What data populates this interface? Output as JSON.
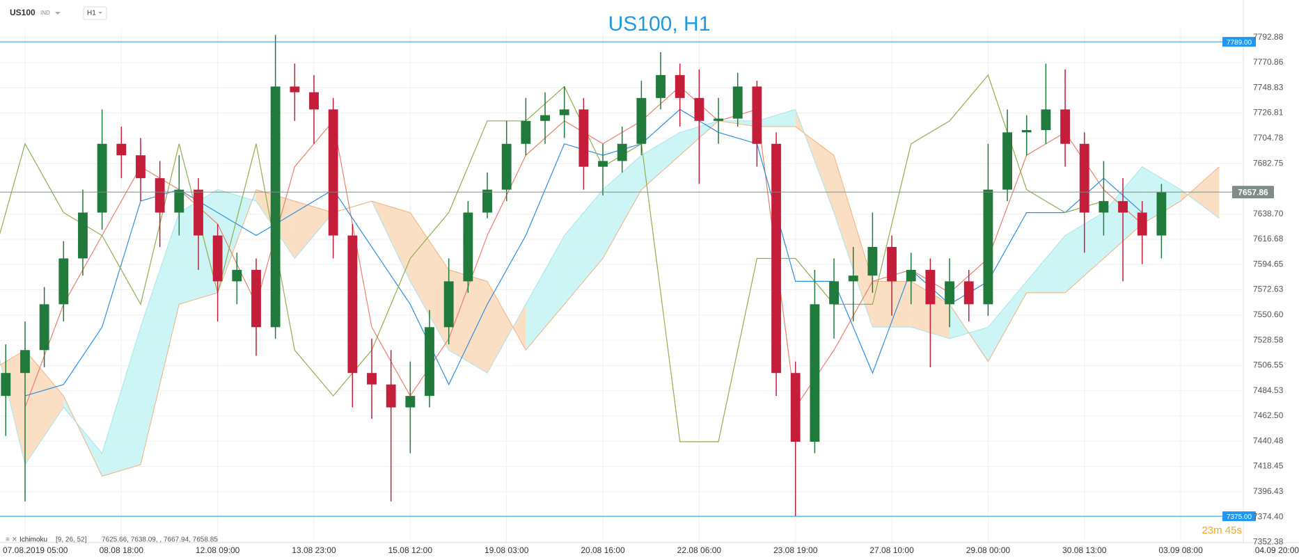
{
  "header": {
    "symbol": "US100",
    "category": "IND",
    "timeframe": "H1"
  },
  "chart_data": {
    "type": "candlestick",
    "title": "US100, H1",
    "x": [
      -2,
      0,
      2,
      4,
      6,
      8,
      10,
      12,
      14,
      16,
      18,
      20,
      22,
      24,
      26,
      28,
      30,
      32,
      34,
      36,
      38,
      40,
      42,
      44,
      46,
      48,
      50,
      52,
      54,
      56,
      58,
      60,
      62,
      64,
      66,
      68,
      70,
      72,
      74,
      76,
      78,
      80,
      82,
      84,
      86,
      88,
      90,
      92,
      94,
      96,
      98,
      100,
      102,
      104,
      106,
      108,
      110,
      112,
      114,
      116,
      118
    ],
    "open": [
      7480,
      7500,
      7520,
      7560,
      7600,
      7640,
      7700,
      7690,
      7670,
      7640,
      7660,
      7620,
      7580,
      7590,
      7540,
      7750,
      7745,
      7730,
      7620,
      7500,
      7490,
      7470,
      7480,
      7540,
      7580,
      7640,
      7660,
      7700,
      7720,
      7725,
      7730,
      7680,
      7685,
      7700,
      7740,
      7760,
      7740,
      7720,
      7722,
      7750,
      7700,
      7500,
      7440,
      7560,
      7580,
      7585,
      7610,
      7580,
      7590,
      7560,
      7580,
      7560,
      7660,
      7710,
      7712,
      7730,
      7700,
      7640,
      7650,
      7640,
      7620
    ],
    "high": [
      7525,
      7545,
      7575,
      7615,
      7660,
      7730,
      7715,
      7705,
      7685,
      7690,
      7670,
      7630,
      7605,
      7600,
      7795,
      7770,
      7760,
      7740,
      7630,
      7530,
      7520,
      7510,
      7555,
      7600,
      7650,
      7675,
      7720,
      7740,
      7745,
      7750,
      7740,
      7700,
      7715,
      7755,
      7780,
      7770,
      7765,
      7740,
      7762,
      7755,
      7710,
      7510,
      7590,
      7600,
      7610,
      7640,
      7620,
      7605,
      7600,
      7600,
      7590,
      7700,
      7730,
      7725,
      7770,
      7765,
      7710,
      7685,
      7670,
      7650,
      7665
    ],
    "low": [
      7445,
      7388,
      7505,
      7545,
      7585,
      7625,
      7670,
      7650,
      7610,
      7620,
      7590,
      7545,
      7560,
      7515,
      7530,
      7720,
      7700,
      7600,
      7470,
      7460,
      7388,
      7430,
      7470,
      7525,
      7570,
      7635,
      7650,
      7690,
      7700,
      7705,
      7660,
      7655,
      7675,
      7690,
      7730,
      7715,
      7665,
      7700,
      7715,
      7680,
      7480,
      7375,
      7430,
      7530,
      7545,
      7570,
      7550,
      7560,
      7505,
      7540,
      7545,
      7550,
      7650,
      7690,
      7700,
      7680,
      7605,
      7620,
      7580,
      7595,
      7600
    ],
    "close": [
      7500,
      7520,
      7560,
      7600,
      7640,
      7700,
      7690,
      7670,
      7640,
      7660,
      7620,
      7580,
      7590,
      7540,
      7750,
      7745,
      7730,
      7620,
      7500,
      7490,
      7470,
      7480,
      7540,
      7580,
      7640,
      7660,
      7700,
      7720,
      7725,
      7730,
      7680,
      7685,
      7700,
      7740,
      7760,
      7740,
      7720,
      7722,
      7750,
      7700,
      7500,
      7440,
      7560,
      7580,
      7585,
      7610,
      7580,
      7590,
      7560,
      7580,
      7560,
      7660,
      7710,
      7712,
      7730,
      7700,
      7640,
      7650,
      7640,
      7620,
      7658
    ],
    "up_color": "#1f7a3c",
    "down_color": "#c41e3a",
    "line_x": [
      -4,
      0,
      4,
      8,
      12,
      16,
      20,
      24,
      28,
      32,
      36,
      40,
      44,
      48,
      52,
      56,
      60,
      64,
      68,
      72,
      76,
      80,
      84,
      88,
      92,
      96,
      100,
      104,
      108,
      112,
      116,
      120,
      124
    ],
    "lines": [
      {
        "color": "#ec7f6a",
        "values": [
          null,
          7470,
          7560,
          7620,
          7680,
          7660,
          7630,
          7560,
          7680,
          7720,
          7540,
          7480,
          7530,
          7620,
          7690,
          7720,
          7700,
          7720,
          7750,
          7720,
          7730,
          7470,
          7520,
          7580,
          7590,
          7570,
          7600,
          7690,
          7710,
          7660,
          7630,
          null,
          null
        ]
      },
      {
        "color": "#2b8fe3",
        "values": [
          null,
          7480,
          7490,
          7540,
          7650,
          7660,
          7640,
          7620,
          7640,
          7660,
          7610,
          7560,
          7490,
          7560,
          7620,
          7700,
          7690,
          7700,
          7730,
          7710,
          7700,
          7580,
          7580,
          7500,
          7590,
          7560,
          7580,
          7640,
          7640,
          7670,
          7640,
          null,
          null
        ]
      },
      {
        "color": "#8fae4e",
        "values": [
          7580,
          7700,
          7640,
          7620,
          7560,
          7700,
          7570,
          7700,
          7520,
          7480,
          7520,
          7600,
          7640,
          7720,
          7720,
          7750,
          7680,
          7700,
          7440,
          7440,
          7600,
          7600,
          7560,
          7560,
          7700,
          7720,
          7760,
          7660,
          7640,
          7650,
          null,
          null,
          null
        ]
      }
    ],
    "cloud": {
      "span_a": [
        7560,
        7420,
        7470,
        7430,
        7540,
        7640,
        7660,
        7650,
        7600,
        7640,
        7650,
        7580,
        7520,
        7500,
        7560,
        7620,
        7660,
        7690,
        7710,
        7720,
        7720,
        7730,
        7640,
        7540,
        7540,
        7530,
        7540,
        7580,
        7620,
        7640,
        7680,
        7660,
        7635
      ],
      "span_b": [
        7500,
        7520,
        7480,
        7410,
        7420,
        7560,
        7570,
        7660,
        7650,
        7640,
        7650,
        7640,
        7590,
        7580,
        7520,
        7560,
        7600,
        7660,
        7690,
        7720,
        7715,
        7715,
        7690,
        7580,
        7580,
        7560,
        7510,
        7570,
        7570,
        7600,
        7630,
        7650,
        7680
      ],
      "up_color": "#c9f4f4",
      "down_color": "#fbdcbe",
      "up_edge": "#a4e6ea",
      "down_edge": "#f0b27c"
    },
    "xlim": [
      -2.6,
      126.5
    ],
    "ylim": [
      7352,
      7800
    ],
    "xticks": [
      {
        "value": 0,
        "label": "07.08.2019  05:00"
      },
      {
        "value": 10,
        "label": "08.08  18:00"
      },
      {
        "value": 20,
        "label": "12.08  09:00"
      },
      {
        "value": 30,
        "label": "13.08  23:00"
      },
      {
        "value": 40,
        "label": "15.08  12:00"
      },
      {
        "value": 50,
        "label": "19.08  03:00"
      },
      {
        "value": 60,
        "label": "20.08  16:00"
      },
      {
        "value": 70,
        "label": "22.08  06:00"
      },
      {
        "value": 80,
        "label": "23.08  19:00"
      },
      {
        "value": 90,
        "label": "27.08  10:00"
      },
      {
        "value": 100,
        "label": "29.08  00:00"
      },
      {
        "value": 110,
        "label": "30.08  13:00"
      },
      {
        "value": 120,
        "label": "03.09  08:00"
      },
      {
        "value": 130,
        "label": "04.09  20:00"
      }
    ],
    "yticks": [
      7792.88,
      7770.86,
      7748.83,
      7726.81,
      7704.78,
      7682.75,
      {
        "value": 7638.7,
        "label": "7638.70"
      },
      7616.68,
      7594.65,
      7572.63,
      {
        "value": 7550.6,
        "label": "7550.60"
      },
      7528.58,
      7506.55,
      7484.53,
      {
        "value": 7462.5,
        "label": "7462.50"
      },
      7440.48,
      7418.45,
      7396.43,
      {
        "value": 7374.4,
        "label": "7374.40"
      },
      7352.38
    ],
    "grid": true,
    "price_lines": [
      {
        "value": 7789,
        "label": "7789.00",
        "color": "#2196f3"
      },
      {
        "value": 7375,
        "label": "7375.00",
        "color": "#2196f3"
      },
      {
        "value": 7657.86,
        "label": "7657.86",
        "color": "#7d8c88"
      }
    ],
    "indicator_name": "Ichimoku",
    "indicator_params": "[9, 26, 52]",
    "indicator_values": "7625.66,  7638.09,  ,  7667.94,  7658.85",
    "countdown": "23m 45s"
  }
}
